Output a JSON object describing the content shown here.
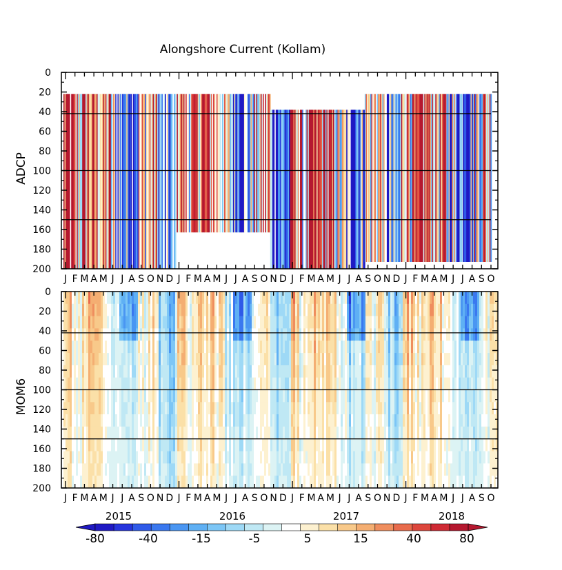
{
  "chart_data": {
    "type": "heatmap",
    "title": "Alongshore Current (Kollam)",
    "colormap": "blue-white-red diverging",
    "colorbar": {
      "ticks": [
        "-80",
        "-40",
        "-15",
        "-5",
        "5",
        "15",
        "40",
        "80"
      ],
      "levels": [
        -80,
        -70,
        -60,
        -50,
        -40,
        -30,
        -20,
        -15,
        -12,
        -10,
        -8,
        -5,
        -3,
        -1,
        1,
        3,
        5,
        8,
        10,
        12,
        15,
        20,
        30,
        40,
        50,
        60,
        70,
        80
      ],
      "extend": "both"
    },
    "x": {
      "start": "2015-01",
      "end": "2018-10",
      "month_ticks": [
        "J",
        "F",
        "M",
        "A",
        "M",
        "J",
        "J",
        "A",
        "S",
        "O",
        "N",
        "D",
        "J",
        "F",
        "M",
        "A",
        "M",
        "J",
        "J",
        "A",
        "S",
        "O",
        "N",
        "D",
        "J",
        "F",
        "M",
        "A",
        "M",
        "J",
        "J",
        "A",
        "S",
        "O",
        "N",
        "D",
        "J",
        "F",
        "M",
        "A",
        "M",
        "J",
        "J",
        "A",
        "S",
        "O"
      ],
      "year_labels": [
        "2015",
        "2016",
        "2017",
        "2018"
      ]
    },
    "panels": [
      {
        "ylabel": "ADCP",
        "ylim": [
          200,
          0
        ],
        "yticks": [
          "0",
          "20",
          "40",
          "60",
          "80",
          "100",
          "120",
          "140",
          "160",
          "180",
          "200"
        ],
        "reference_lines": [
          42,
          100,
          150
        ],
        "coverage": [
          {
            "from": "2015-01",
            "to": "2015-12",
            "top": 22,
            "bottom": 200
          },
          {
            "from": "2016-01",
            "to": "2016-10",
            "top": 22,
            "bottom": 163
          },
          {
            "from": "2016-11",
            "to": "2017-08",
            "top": 38,
            "bottom": 200
          },
          {
            "from": "2017-09",
            "to": "2018-10",
            "top": 22,
            "bottom": 193
          }
        ]
      },
      {
        "ylabel": "MOM6",
        "ylim": [
          200,
          0
        ],
        "yticks": [
          "0",
          "20",
          "40",
          "60",
          "80",
          "100",
          "120",
          "140",
          "160",
          "180",
          "200"
        ],
        "reference_lines": [
          42,
          100,
          150
        ]
      }
    ]
  }
}
